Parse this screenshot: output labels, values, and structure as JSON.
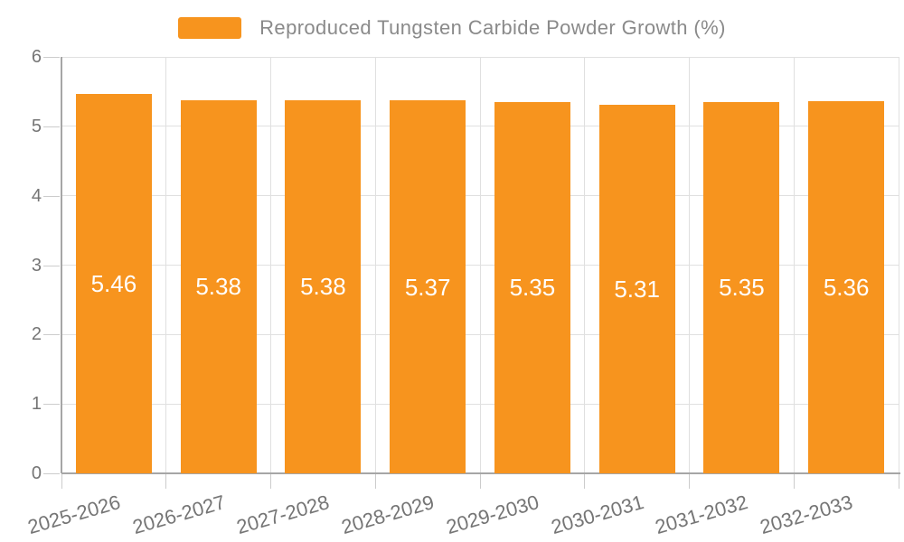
{
  "chart_data": {
    "type": "bar",
    "title": "Reproduced Tungsten Carbide Powder Growth (%)",
    "legend": {
      "label": "Reproduced Tungsten Carbide Powder Growth (%)",
      "position": "top-center",
      "marker": "rounded-rect"
    },
    "categories": [
      "2025-2026",
      "2026-2027",
      "2027-2028",
      "2028-2029",
      "2029-2030",
      "2030-2031",
      "2031-2032",
      "2032-2033"
    ],
    "values": [
      5.46,
      5.38,
      5.38,
      5.37,
      5.35,
      5.31,
      5.35,
      5.36
    ],
    "bar_value_labels": [
      "5.46",
      "5.38",
      "5.38",
      "5.37",
      "5.35",
      "5.31",
      "5.35",
      "5.36"
    ],
    "xlabel": "",
    "ylabel": "",
    "ylim": [
      0,
      6
    ],
    "yticks": [
      0,
      1,
      2,
      3,
      4,
      5,
      6
    ],
    "grid": true,
    "gridlines": "horizontal-and-category-boundaries",
    "x_label_rotation_deg": -16,
    "colors": {
      "bar": "#F7941E",
      "bar_label_text": "#FFFFFF",
      "gridline": "#E0E0E0",
      "axis_line": "#A6A6A6",
      "tick_mark": "#CCCCCC",
      "axis_text": "#757575",
      "legend_text": "#8A8A8A",
      "background": "#FFFFFF"
    }
  }
}
